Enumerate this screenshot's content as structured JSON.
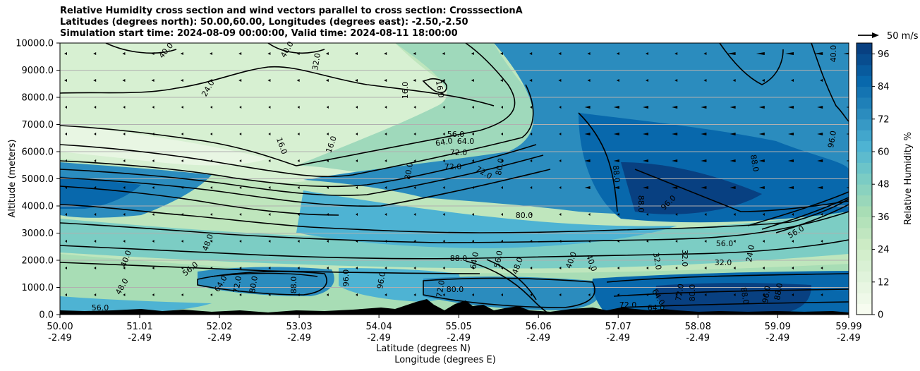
{
  "chart_data": {
    "type": "heatmap",
    "title_lines": [
      "Relative Humidity cross section and wind vectors parallel to cross section: CrosssectionA",
      "Latitudes (degrees north): 50.00,60.00, Longitudes (degrees east): -2.50,-2.50",
      "Simulation start time: 2024-08-09 00:00:00, Valid time: 2024-08-11 18:00:00"
    ],
    "ylabel": "Altitude (meters)",
    "xlabel_lines": [
      "Latitude (degrees N)",
      "Longitude (degrees E)"
    ],
    "y_ticks": [
      "0.0",
      "1000.0",
      "2000.0",
      "3000.0",
      "4000.0",
      "5000.0",
      "6000.0",
      "7000.0",
      "8000.0",
      "9000.0",
      "10000.0"
    ],
    "ylim": [
      0,
      10000
    ],
    "x_ticks": [
      {
        "lat": "50.00",
        "lon": "-2.49"
      },
      {
        "lat": "51.01",
        "lon": "-2.49"
      },
      {
        "lat": "52.02",
        "lon": "-2.49"
      },
      {
        "lat": "53.03",
        "lon": "-2.49"
      },
      {
        "lat": "54.04",
        "lon": "-2.49"
      },
      {
        "lat": "55.05",
        "lon": "-2.49"
      },
      {
        "lat": "56.06",
        "lon": "-2.49"
      },
      {
        "lat": "57.07",
        "lon": "-2.49"
      },
      {
        "lat": "58.08",
        "lon": "-2.49"
      },
      {
        "lat": "59.09",
        "lon": "-2.49"
      },
      {
        "lat": "59.99",
        "lon": "-2.49"
      }
    ],
    "xlim": [
      50.0,
      59.99
    ],
    "grid": "horizontal",
    "colorbar": {
      "label": "Relative Humidity %",
      "ticks": [
        "0",
        "12",
        "24",
        "36",
        "48",
        "60",
        "72",
        "84",
        "96"
      ],
      "range": [
        0,
        100
      ],
      "levels": 25,
      "colormap_low": "#f7fcf0",
      "colormap_high": "#084081"
    },
    "quiver_key": "50 m/s",
    "contour_labels": [
      "40.0",
      "40.0",
      "32.0",
      "24.0",
      "16.0",
      "16.0",
      "16.0",
      "16.0",
      "56.0",
      "64.0",
      "64.0",
      "72.0",
      "72.0",
      "72.0",
      "80.0",
      "80.0",
      "80.0",
      "88.0",
      "88.0",
      "88.0",
      "96.0",
      "96.0",
      "56.0",
      "48.0",
      "40.0",
      "48.0",
      "56.0",
      "64.0",
      "72.0",
      "80.0",
      "88.0",
      "96.0",
      "96.0",
      "88.0",
      "80.0",
      "72.0",
      "64.0",
      "56.0",
      "48.0",
      "40.0",
      "40.0",
      "32.0",
      "32.0",
      "32.0",
      "24.0",
      "56.0",
      "40.0",
      "64.0",
      "72.0",
      "80.0",
      "88.0",
      "96.0",
      "88.0",
      "56.0",
      "72.0",
      "64.0"
    ],
    "terrain_color": "#000000"
  }
}
